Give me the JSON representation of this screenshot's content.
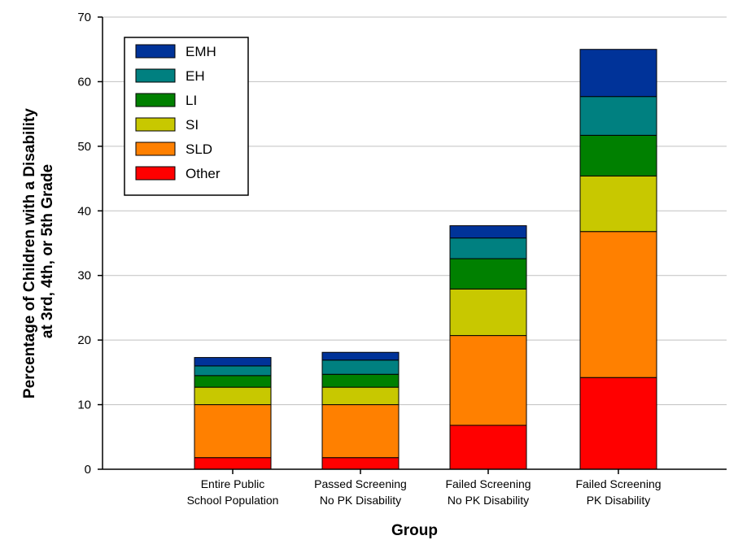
{
  "chart_data": {
    "type": "bar",
    "stacked": true,
    "categories": [
      [
        "Entire Public",
        "School Population"
      ],
      [
        "Passed Screening",
        "No PK Disability"
      ],
      [
        "Failed Screening",
        "No PK Disability"
      ],
      [
        "Failed Screening",
        "PK Disability"
      ]
    ],
    "series": [
      {
        "name": "Other",
        "color": "#ff0000",
        "values": [
          1.8,
          1.8,
          6.8,
          14.2
        ]
      },
      {
        "name": "SLD",
        "color": "#ff8000",
        "values": [
          8.2,
          8.2,
          13.9,
          22.6
        ]
      },
      {
        "name": "SI",
        "color": "#c8c800",
        "values": [
          2.7,
          2.7,
          7.2,
          8.6
        ]
      },
      {
        "name": "LI",
        "color": "#008000",
        "values": [
          1.8,
          2.0,
          4.7,
          6.3
        ]
      },
      {
        "name": "EH",
        "color": "#008080",
        "values": [
          1.5,
          2.2,
          3.2,
          6.0
        ]
      },
      {
        "name": "EMH",
        "color": "#003399",
        "values": [
          1.3,
          1.2,
          1.9,
          7.3
        ]
      }
    ],
    "legend_order": [
      "EMH",
      "EH",
      "LI",
      "SI",
      "SLD",
      "Other"
    ],
    "title": "",
    "xlabel": "Group",
    "ylabel": [
      "Percentage of Children with a Disability",
      "at 3rd, 4th, or 5th Grade"
    ],
    "ylim": [
      0,
      70
    ],
    "yticks": [
      0,
      10,
      20,
      30,
      40,
      50,
      60,
      70
    ],
    "grid": true,
    "legend_position": "top-left"
  }
}
